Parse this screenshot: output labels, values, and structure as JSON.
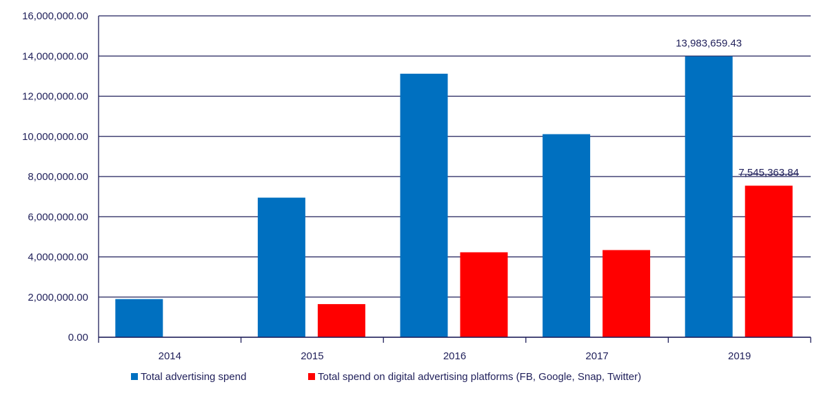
{
  "chart_data": {
    "type": "bar",
    "title": "",
    "xlabel": "",
    "ylabel": "",
    "categories": [
      "2014",
      "2015",
      "2016",
      "2017",
      "2019"
    ],
    "series": [
      {
        "name": "Total advertising spend",
        "color": "#0070C0",
        "values": [
          1900000,
          6950000,
          13120000,
          10110000,
          13983659.43
        ]
      },
      {
        "name": "Total spend on digital advertising platforms (FB, Google, Snap, Twitter)",
        "color": "#FF0000",
        "values": [
          null,
          1650000,
          4230000,
          4340000,
          7545363.84
        ]
      }
    ],
    "ylim": [
      0,
      16000000
    ],
    "yticks": [
      {
        "value": 0,
        "label": "0.00"
      },
      {
        "value": 2000000,
        "label": "2,000,000.00"
      },
      {
        "value": 4000000,
        "label": "4,000,000.00"
      },
      {
        "value": 6000000,
        "label": "6,000,000.00"
      },
      {
        "value": 8000000,
        "label": "8,000,000.00"
      },
      {
        "value": 10000000,
        "label": "10,000,000.00"
      },
      {
        "value": 12000000,
        "label": "12,000,000.00"
      },
      {
        "value": 14000000,
        "label": "14,000,000.00"
      },
      {
        "value": 16000000,
        "label": "16,000,000.00"
      }
    ],
    "data_labels": [
      {
        "series": 0,
        "index": 4,
        "text": "13,983,659.43"
      },
      {
        "series": 1,
        "index": 4,
        "text": "7,545,363.84"
      }
    ],
    "grid": true,
    "legend_position": "bottom",
    "gridline_color": "#1f1f5a"
  }
}
